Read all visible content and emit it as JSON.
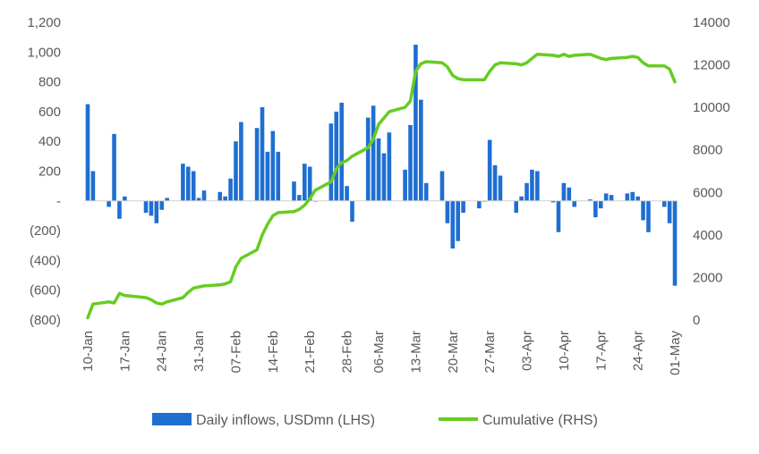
{
  "chart_data": {
    "type": "bar",
    "title": "",
    "colors": {
      "bars": "#1f6fd1",
      "line": "#66cc22",
      "text": "#595959",
      "axis": "#d0d0d0"
    },
    "x_tick_labels": [
      "10-Jan",
      "17-Jan",
      "24-Jan",
      "31-Jan",
      "07-Feb",
      "14-Feb",
      "21-Feb",
      "28-Feb",
      "06-Mar",
      "13-Mar",
      "20-Mar",
      "27-Mar",
      "03-Apr",
      "10-Apr",
      "17-Apr",
      "24-Apr",
      "01-May"
    ],
    "y_left": {
      "ticks": [
        "(800)",
        "(600)",
        "(400)",
        "(200)",
        "-",
        "200",
        "400",
        "600",
        "800",
        "1,000",
        "1,200"
      ],
      "min": -800,
      "max": 1200,
      "step": 200
    },
    "y_right": {
      "ticks": [
        "0",
        "2000",
        "4000",
        "6000",
        "8000",
        "10000",
        "12000",
        "14000"
      ],
      "min": 0,
      "max": 14000,
      "step": 2000
    },
    "legend": [
      {
        "name": "Daily inflows, USDmn (LHS)",
        "kind": "bar"
      },
      {
        "name": "Cumulative (RHS)",
        "kind": "line"
      }
    ],
    "series": [
      {
        "name": "Daily inflows, USDmn (LHS)",
        "axis": "left",
        "type": "bar",
        "x": [
          "10-Jan",
          "11-Jan",
          "14-Jan",
          "15-Jan",
          "16-Jan",
          "17-Jan",
          "21-Jan",
          "22-Jan",
          "23-Jan",
          "24-Jan",
          "25-Jan",
          "28-Jan",
          "29-Jan",
          "30-Jan",
          "31-Jan",
          "01-Feb",
          "04-Feb",
          "05-Feb",
          "06-Feb",
          "07-Feb",
          "08-Feb",
          "11-Feb",
          "12-Feb",
          "13-Feb",
          "14-Feb",
          "15-Feb",
          "18-Feb",
          "19-Feb",
          "20-Feb",
          "21-Feb",
          "22-Feb",
          "25-Feb",
          "26-Feb",
          "27-Feb",
          "28-Feb",
          "01-Mar",
          "04-Mar",
          "05-Mar",
          "06-Mar",
          "07-Mar",
          "08-Mar",
          "11-Mar",
          "12-Mar",
          "13-Mar",
          "14-Mar",
          "15-Mar",
          "18-Mar",
          "19-Mar",
          "20-Mar",
          "21-Mar",
          "22-Mar",
          "25-Mar",
          "26-Mar",
          "27-Mar",
          "28-Mar",
          "29-Mar",
          "01-Apr",
          "02-Apr",
          "03-Apr",
          "04-Apr",
          "05-Apr",
          "08-Apr",
          "09-Apr",
          "10-Apr",
          "11-Apr",
          "12-Apr",
          "15-Apr",
          "16-Apr",
          "17-Apr",
          "18-Apr",
          "19-Apr",
          "22-Apr",
          "23-Apr",
          "24-Apr",
          "25-Apr",
          "26-Apr",
          "29-Apr",
          "30-Apr",
          "01-May"
        ],
        "values": [
          650,
          200,
          -40,
          450,
          -120,
          30,
          -80,
          -100,
          -150,
          -60,
          20,
          250,
          230,
          200,
          20,
          70,
          60,
          30,
          150,
          400,
          530,
          490,
          630,
          330,
          470,
          330,
          130,
          40,
          250,
          230,
          0,
          520,
          600,
          660,
          100,
          -140,
          560,
          640,
          420,
          320,
          460,
          210,
          510,
          1050,
          680,
          120,
          200,
          -150,
          -320,
          -270,
          -80,
          -50,
          0,
          410,
          240,
          170,
          -80,
          30,
          120,
          210,
          200,
          -10,
          -210,
          120,
          90,
          -40,
          10,
          -110,
          -50,
          50,
          40,
          50,
          60,
          30,
          -130,
          -210,
          -40,
          -150,
          -570
        ]
      },
      {
        "name": "Cumulative (RHS)",
        "axis": "right",
        "type": "line",
        "x": [
          "10-Jan",
          "11-Jan",
          "14-Jan",
          "15-Jan",
          "16-Jan",
          "17-Jan",
          "21-Jan",
          "22-Jan",
          "23-Jan",
          "24-Jan",
          "25-Jan",
          "28-Jan",
          "29-Jan",
          "30-Jan",
          "31-Jan",
          "01-Feb",
          "04-Feb",
          "05-Feb",
          "06-Feb",
          "07-Feb",
          "08-Feb",
          "11-Feb",
          "12-Feb",
          "13-Feb",
          "14-Feb",
          "15-Feb",
          "18-Feb",
          "19-Feb",
          "20-Feb",
          "21-Feb",
          "22-Feb",
          "25-Feb",
          "26-Feb",
          "27-Feb",
          "28-Feb",
          "01-Mar",
          "04-Mar",
          "05-Mar",
          "06-Mar",
          "07-Mar",
          "08-Mar",
          "11-Mar",
          "12-Mar",
          "13-Mar",
          "14-Mar",
          "15-Mar",
          "18-Mar",
          "19-Mar",
          "20-Mar",
          "21-Mar",
          "22-Mar",
          "25-Mar",
          "26-Mar",
          "27-Mar",
          "28-Mar",
          "29-Mar",
          "01-Apr",
          "02-Apr",
          "03-Apr",
          "04-Apr",
          "05-Apr",
          "08-Apr",
          "09-Apr",
          "10-Apr",
          "11-Apr",
          "12-Apr",
          "15-Apr",
          "16-Apr",
          "17-Apr",
          "18-Apr",
          "19-Apr",
          "22-Apr",
          "23-Apr",
          "24-Apr",
          "25-Apr",
          "26-Apr",
          "29-Apr",
          "30-Apr",
          "01-May"
        ],
        "values": [
          100,
          750,
          850,
          800,
          1250,
          1150,
          1050,
          950,
          800,
          750,
          850,
          1050,
          1300,
          1500,
          1550,
          1600,
          1650,
          1700,
          1800,
          2500,
          2900,
          3300,
          4000,
          4500,
          4900,
          5050,
          5100,
          5200,
          5400,
          5700,
          6100,
          6500,
          7100,
          7400,
          7500,
          7700,
          8100,
          8500,
          9200,
          9500,
          9800,
          10000,
          10300,
          11700,
          12050,
          12150,
          12100,
          11900,
          11500,
          11350,
          11300,
          11300,
          11300,
          11700,
          12000,
          12100,
          12050,
          12000,
          12100,
          12300,
          12500,
          12450,
          12400,
          12500,
          12400,
          12450,
          12500,
          12400,
          12300,
          12250,
          12300,
          12350,
          12400,
          12350,
          12100,
          11950,
          11950,
          11800,
          11200
        ]
      }
    ],
    "grid": false
  }
}
